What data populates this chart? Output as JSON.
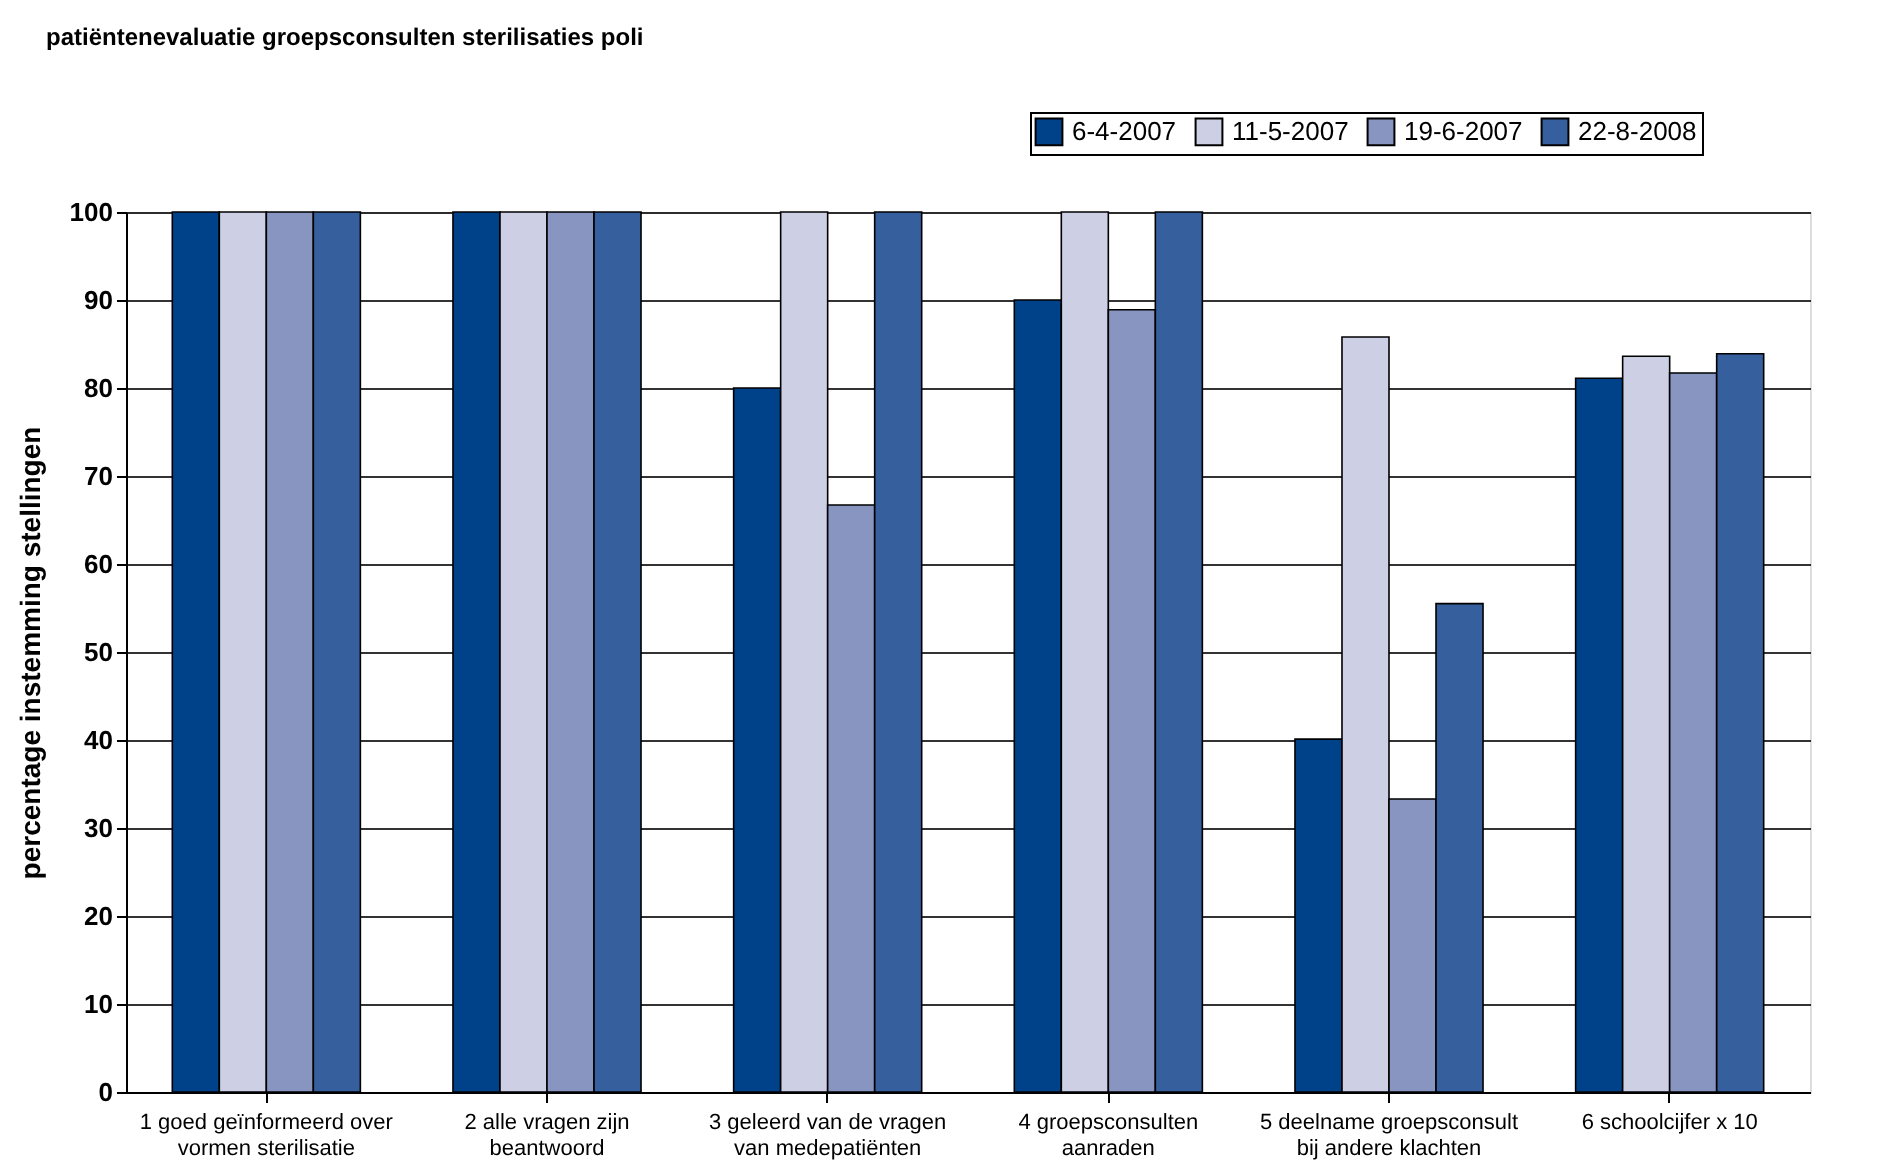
{
  "chart_data": {
    "type": "bar",
    "title": "patiëntenevaluatie groepsconsulten sterilisaties poli",
    "ylabel": "percentage instemming stellingen",
    "categories": [
      "1 goed geïnformeerd over vormen sterilisatie",
      "2 alle vragen zijn beantwoord",
      "3 geleerd van de vragen van medepatiënten",
      "4 groepsconsulten aanraden",
      "5 deelname groepsconsult bij andere klachten",
      "6 schoolcijfer x 10"
    ],
    "series": [
      {
        "name": "6-4-2007",
        "color": "#00428a",
        "values": [
          100,
          100,
          80,
          90,
          40.1,
          81.1
        ]
      },
      {
        "name": "11-5-2007",
        "color": "#cdd0e5",
        "values": [
          100,
          100,
          100,
          100,
          85.8,
          83.6
        ]
      },
      {
        "name": "19-6-2007",
        "color": "#8795c0",
        "values": [
          100,
          100,
          66.7,
          88.9,
          33.3,
          81.7
        ]
      },
      {
        "name": "22-8-2008",
        "color": "#365f9e",
        "values": [
          100,
          100,
          100,
          100,
          55.5,
          83.9
        ]
      }
    ],
    "ylim": [
      0,
      100
    ],
    "yticks": [
      0,
      10,
      20,
      30,
      40,
      50,
      60,
      70,
      80,
      90,
      100
    ],
    "grid": "y",
    "legend": "top right"
  }
}
